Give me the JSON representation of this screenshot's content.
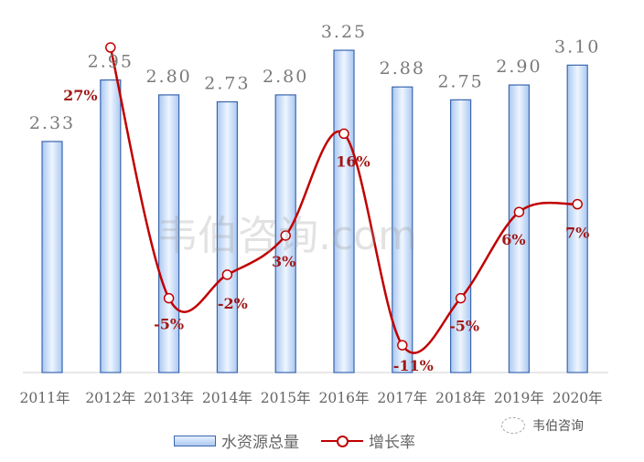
{
  "chart_data": {
    "type": "bar+line",
    "categories": [
      "2011年",
      "2012年",
      "2013年",
      "2014年",
      "2015年",
      "2016年",
      "2017年",
      "2018年",
      "2019年",
      "2020年"
    ],
    "series": [
      {
        "name": "水资源总量",
        "type": "bar",
        "values": [
          2.33,
          2.95,
          2.8,
          2.73,
          2.8,
          3.25,
          2.88,
          2.75,
          2.9,
          3.1
        ],
        "labels": [
          "2.33",
          "2.95",
          "2.80",
          "2.73",
          "2.80",
          "3.25",
          "2.88",
          "2.75",
          "2.90",
          "3.10"
        ]
      },
      {
        "name": "增长率",
        "type": "line",
        "values": [
          null,
          27,
          -5,
          -2,
          3,
          16,
          -11,
          -5,
          6,
          7
        ],
        "labels": [
          "",
          "27%",
          "-5%",
          "-2%",
          "3%",
          "16%",
          "-11%",
          "-5%",
          "6%",
          "7%"
        ]
      }
    ],
    "ylim": [
      0,
      3.75
    ],
    "y2lim_percent": [
      -33,
      33
    ],
    "legend": "bottom",
    "colors": {
      "bar_border": "#3a66b0",
      "bar_fill_top": "#e6f0ff",
      "bar_fill_bottom": "#aac8f0",
      "line": "#c00000",
      "line_label": "#a01818"
    }
  },
  "watermark": "韦伯咨询.com",
  "brand": "韦伯咨询"
}
